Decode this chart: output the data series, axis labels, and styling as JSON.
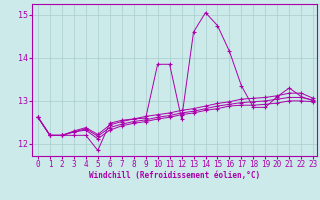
{
  "background_color": "#cceaea",
  "grid_color": "#aacccc",
  "line_color": "#aa00aa",
  "marker_color": "#aa00aa",
  "xlabel": "Windchill (Refroidissement éolien,°C)",
  "xlim_min": -0.5,
  "xlim_max": 23.3,
  "ylim_min": 11.72,
  "ylim_max": 15.25,
  "yticks": [
    12,
    13,
    14,
    15
  ],
  "xticks": [
    0,
    1,
    2,
    3,
    4,
    5,
    6,
    7,
    8,
    9,
    10,
    11,
    12,
    13,
    14,
    15,
    16,
    17,
    18,
    19,
    20,
    21,
    22,
    23
  ],
  "series": [
    [
      12.62,
      12.2,
      12.2,
      12.2,
      12.2,
      11.85,
      12.48,
      12.55,
      12.58,
      12.6,
      13.85,
      13.85,
      12.58,
      14.6,
      15.05,
      14.75,
      14.15,
      13.35,
      12.85,
      12.85,
      13.1,
      13.3,
      13.1,
      13.0
    ],
    [
      12.62,
      12.2,
      12.2,
      12.28,
      12.32,
      12.12,
      12.32,
      12.42,
      12.48,
      12.52,
      12.58,
      12.62,
      12.68,
      12.72,
      12.78,
      12.82,
      12.88,
      12.9,
      12.9,
      12.92,
      12.95,
      13.0,
      13.0,
      12.98
    ],
    [
      12.62,
      12.2,
      12.2,
      12.28,
      12.35,
      12.18,
      12.38,
      12.46,
      12.52,
      12.56,
      12.62,
      12.66,
      12.72,
      12.76,
      12.82,
      12.88,
      12.92,
      12.96,
      12.98,
      13.0,
      13.04,
      13.08,
      13.08,
      13.02
    ],
    [
      12.62,
      12.2,
      12.2,
      12.3,
      12.38,
      12.22,
      12.44,
      12.52,
      12.58,
      12.64,
      12.68,
      12.72,
      12.78,
      12.82,
      12.88,
      12.94,
      12.98,
      13.04,
      13.06,
      13.08,
      13.12,
      13.18,
      13.18,
      13.06
    ]
  ],
  "font_family": "monospace",
  "tick_fontsize": 5.5,
  "xlabel_fontsize": 5.5
}
